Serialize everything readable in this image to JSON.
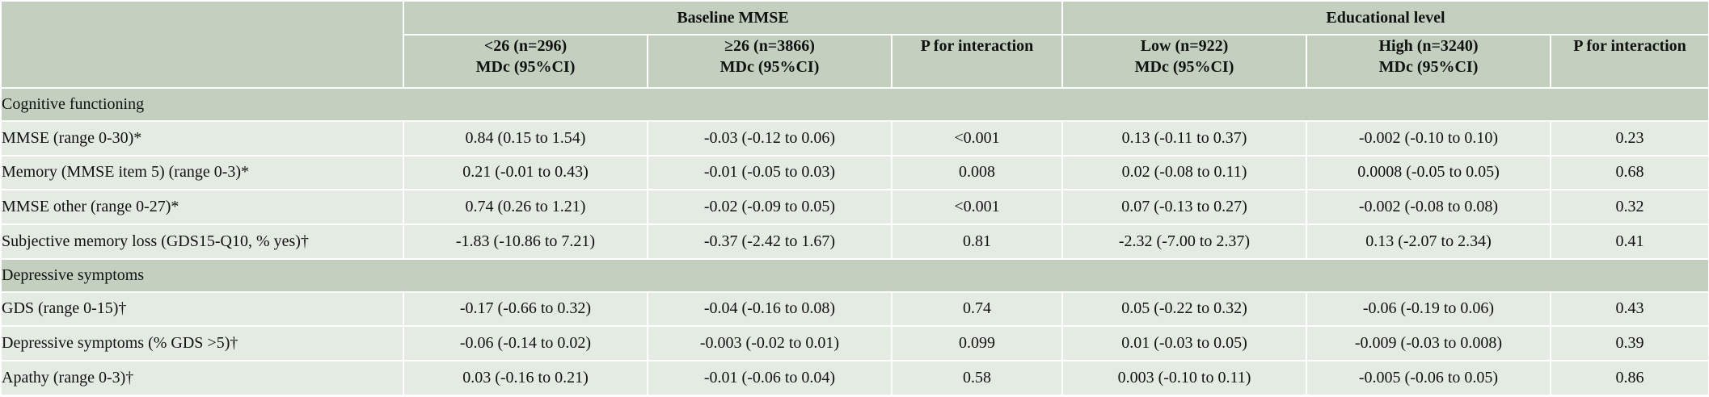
{
  "header": {
    "group_mmse": "Baseline MMSE",
    "group_edu": "Educational level",
    "cols": [
      {
        "line1": "<26 (n=296)",
        "line2": "MDc (95%CI)"
      },
      {
        "line1": "≥26 (n=3866)",
        "line2": "MDc (95%CI)"
      },
      {
        "line1": "P for interaction",
        "line2": ""
      },
      {
        "line1": "Low (n=922)",
        "line2": "MDc (95%CI)"
      },
      {
        "line1": "High (n=3240)",
        "line2": "MDc (95%CI)"
      },
      {
        "line1": "P for interaction",
        "line2": ""
      }
    ]
  },
  "sections": [
    {
      "title": "Cognitive functioning",
      "rows": [
        {
          "label": "MMSE (range 0-30)*",
          "values": [
            "0.84 (0.15 to 1.54)",
            "-0.03 (-0.12 to 0.06)",
            "<0.001",
            "0.13 (-0.11 to 0.37)",
            "-0.002 (-0.10 to 0.10)",
            "0.23"
          ]
        },
        {
          "label": "Memory (MMSE item 5) (range 0-3)*",
          "values": [
            "0.21 (-0.01 to 0.43)",
            "-0.01 (-0.05 to 0.03)",
            "0.008",
            "0.02 (-0.08 to 0.11)",
            "0.0008 (-0.05 to 0.05)",
            "0.68"
          ]
        },
        {
          "label": "MMSE other (range 0-27)*",
          "values": [
            "0.74 (0.26 to 1.21)",
            "-0.02 (-0.09 to 0.05)",
            "<0.001",
            "0.07 (-0.13 to 0.27)",
            "-0.002 (-0.08 to 0.08)",
            "0.32"
          ]
        },
        {
          "label": "Subjective memory loss (GDS15-Q10, % yes)†",
          "values": [
            "-1.83 (-10.86 to 7.21)",
            "-0.37 (-2.42 to 1.67)",
            "0.81",
            "-2.32 (-7.00 to 2.37)",
            "0.13 (-2.07 to 2.34)",
            "0.41"
          ]
        }
      ]
    },
    {
      "title": "Depressive symptoms",
      "rows": [
        {
          "label": "GDS (range 0-15)†",
          "values": [
            "-0.17 (-0.66 to 0.32)",
            "-0.04 (-0.16 to 0.08)",
            "0.74",
            "0.05 (-0.22 to 0.32)",
            "-0.06 (-0.19 to 0.06)",
            "0.43"
          ]
        },
        {
          "label": "Depressive symptoms (% GDS >5)†",
          "values": [
            "-0.06 (-0.14 to 0.02)",
            "-0.003 (-0.02 to 0.01)",
            "0.099",
            "0.01 (-0.03 to 0.05)",
            "-0.009 (-0.03 to 0.008)",
            "0.39"
          ]
        },
        {
          "label": "Apathy (range 0-3)†",
          "values": [
            "0.03 (-0.16 to 0.21)",
            "-0.01 (-0.06 to 0.04)",
            "0.58",
            "0.003 (-0.10 to 0.11)",
            "-0.005 (-0.06 to 0.05)",
            "0.86"
          ]
        }
      ]
    }
  ],
  "colors": {
    "header_bg": "#c3d0c0",
    "row_bg": "#e4ebe2",
    "border": "#ffffff"
  }
}
